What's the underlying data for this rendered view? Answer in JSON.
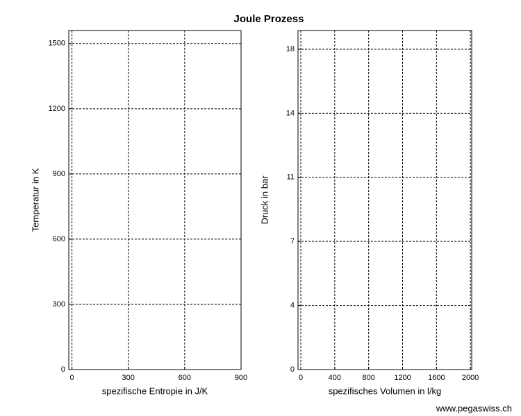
{
  "title": "Joule Prozess",
  "watermark": "www.pegaswiss.ch",
  "chart_data": [
    {
      "type": "line",
      "xlabel": "spezifische Entropie in J/K",
      "ylabel": "Temperatur in K",
      "xlim": [
        -17,
        900
      ],
      "xticks": [
        0,
        300,
        600,
        900
      ],
      "ylim": [
        0,
        1560
      ],
      "yticks": [
        0,
        300,
        600,
        900,
        1200,
        1500
      ],
      "grid": true
    },
    {
      "type": "line",
      "xlabel": "spezifisches Volumen in l/kg",
      "ylabel": "Druck in bar",
      "xlim": [
        -33,
        2015
      ],
      "xticks": [
        0,
        400,
        800,
        1200,
        1600,
        2000
      ],
      "ylim": [
        0,
        19.05
      ],
      "yticks": [
        0,
        {
          "value": 3.6,
          "label": "4"
        },
        {
          "value": 7.2,
          "label": "7"
        },
        {
          "value": 10.8,
          "label": "11"
        },
        {
          "value": 14.4,
          "label": "14"
        },
        18
      ],
      "grid": true
    }
  ]
}
